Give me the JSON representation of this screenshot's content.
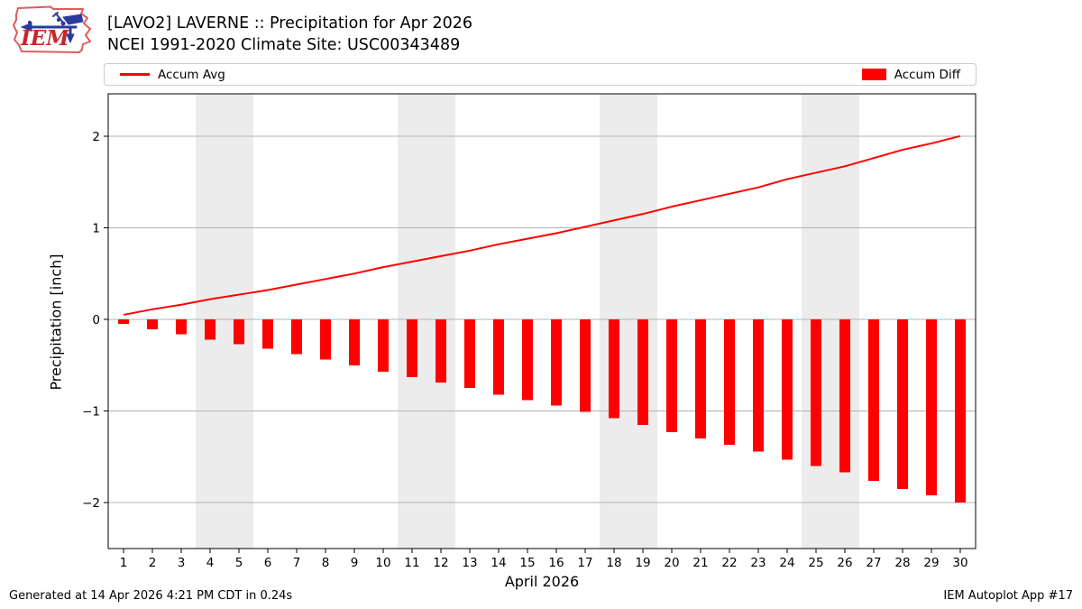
{
  "header": {
    "title_line1": "[LAVO2] LAVERNE :: Precipitation for Apr 2026",
    "title_line2": "NCEI 1991-2020 Climate Site: USC00343489"
  },
  "logo": {
    "text": "IEM"
  },
  "legend": {
    "avg_label": "Accum Avg",
    "diff_label": "Accum Diff"
  },
  "footer": {
    "generated": "Generated at 14 Apr 2026 4:21 PM CDT in 0.24s",
    "app": "IEM Autoplot App #17"
  },
  "colors": {
    "accent": "#ff0000",
    "grid": "#b3b3b3",
    "weekend_band": "#ececec",
    "spine": "#000000",
    "logo_red": "#c9252c",
    "logo_outline": "#e05c5c",
    "logo_blue": "#2b3a9d"
  },
  "chart_data": {
    "type": "bar",
    "title": "[LAVO2] LAVERNE :: Precipitation for Apr 2026",
    "subtitle": "NCEI 1991-2020 Climate Site: USC00343489",
    "xlabel": "April 2026",
    "ylabel": "Precipitation [inch]",
    "x": [
      1,
      2,
      3,
      4,
      5,
      6,
      7,
      8,
      9,
      10,
      11,
      12,
      13,
      14,
      15,
      16,
      17,
      18,
      19,
      20,
      21,
      22,
      23,
      24,
      25,
      26,
      27,
      28,
      29,
      30
    ],
    "series": [
      {
        "name": "Accum Avg",
        "type": "line",
        "values": [
          0.05,
          0.11,
          0.16,
          0.22,
          0.27,
          0.32,
          0.38,
          0.44,
          0.5,
          0.57,
          0.63,
          0.69,
          0.75,
          0.82,
          0.88,
          0.94,
          1.01,
          1.08,
          1.15,
          1.23,
          1.3,
          1.37,
          1.44,
          1.53,
          1.6,
          1.67,
          1.76,
          1.85,
          1.92,
          2.0
        ]
      },
      {
        "name": "Accum Diff",
        "type": "bar",
        "values": [
          -0.05,
          -0.11,
          -0.16,
          -0.22,
          -0.27,
          -0.32,
          -0.38,
          -0.44,
          -0.5,
          -0.57,
          -0.63,
          -0.69,
          -0.75,
          -0.82,
          -0.88,
          -0.94,
          -1.01,
          -1.08,
          -1.15,
          -1.23,
          -1.3,
          -1.37,
          -1.44,
          -1.53,
          -1.6,
          -1.67,
          -1.76,
          -1.85,
          -1.92,
          -2.0
        ]
      }
    ],
    "yticks": [
      2,
      1,
      0,
      -1,
      -2
    ],
    "ytick_labels": [
      "2",
      "1",
      "0",
      "−1",
      "−2"
    ],
    "ylim": [
      -2.5,
      2.46
    ],
    "xlim": [
      0.47,
      30.53
    ],
    "weekend_bands": [
      [
        3.5,
        5.5
      ],
      [
        10.5,
        12.5
      ],
      [
        17.5,
        19.5
      ],
      [
        24.5,
        26.5
      ]
    ],
    "grid": true,
    "legend_position": "top"
  }
}
